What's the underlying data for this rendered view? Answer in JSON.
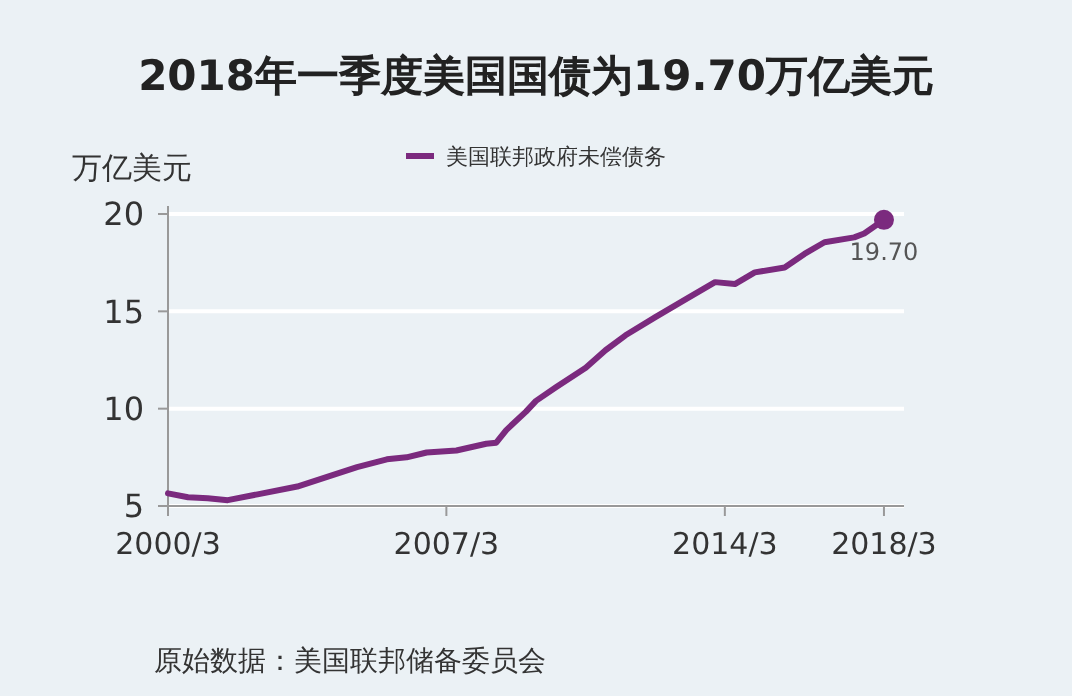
{
  "chart_data": {
    "type": "line",
    "title": "2018年一季度美国国债为19.70万亿美元",
    "ylabel": "万亿美元",
    "legend": "top",
    "grid": "y",
    "marker": "none",
    "line_style": "solid",
    "x": [
      "2000-03",
      "2000-09",
      "2001-03",
      "2001-09",
      "2002-06",
      "2003-06",
      "2004-03",
      "2004-12",
      "2005-09",
      "2006-03",
      "2006-09",
      "2007-06",
      "2008-03",
      "2008-06",
      "2008-09",
      "2009-03",
      "2009-06",
      "2009-12",
      "2010-09",
      "2011-03",
      "2011-09",
      "2012-06",
      "2013-03",
      "2013-12",
      "2014-06",
      "2014-12",
      "2015-09",
      "2016-03",
      "2016-09",
      "2017-06",
      "2017-09",
      "2018-03"
    ],
    "series": [
      {
        "name": "美国联邦政府未偿债务",
        "color": "#7b2a7e",
        "values": [
          5.65,
          5.45,
          5.4,
          5.3,
          5.6,
          6.0,
          6.5,
          7.0,
          7.4,
          7.5,
          7.75,
          7.85,
          8.2,
          8.25,
          8.9,
          9.85,
          10.4,
          11.1,
          12.1,
          13.0,
          13.77,
          14.7,
          15.6,
          16.5,
          16.4,
          17.0,
          17.25,
          17.95,
          18.55,
          18.8,
          19.0,
          19.7
        ]
      }
    ],
    "xlim": [
      "2000-03",
      "2018-09"
    ],
    "xticks": [
      {
        "value": "2000-03",
        "label": "2000/3"
      },
      {
        "value": "2007-03",
        "label": "2007/3"
      },
      {
        "value": "2014-03",
        "label": "2014/3"
      },
      {
        "value": "2018-03",
        "label": "2018/3"
      }
    ],
    "ylim": [
      5,
      20
    ],
    "yticks": [
      5,
      10,
      15,
      20
    ],
    "annotations": [
      {
        "text": "19.70",
        "x": "2018-03",
        "y": 19.7
      },
      "原始数据：美国联邦储备委员会"
    ]
  }
}
